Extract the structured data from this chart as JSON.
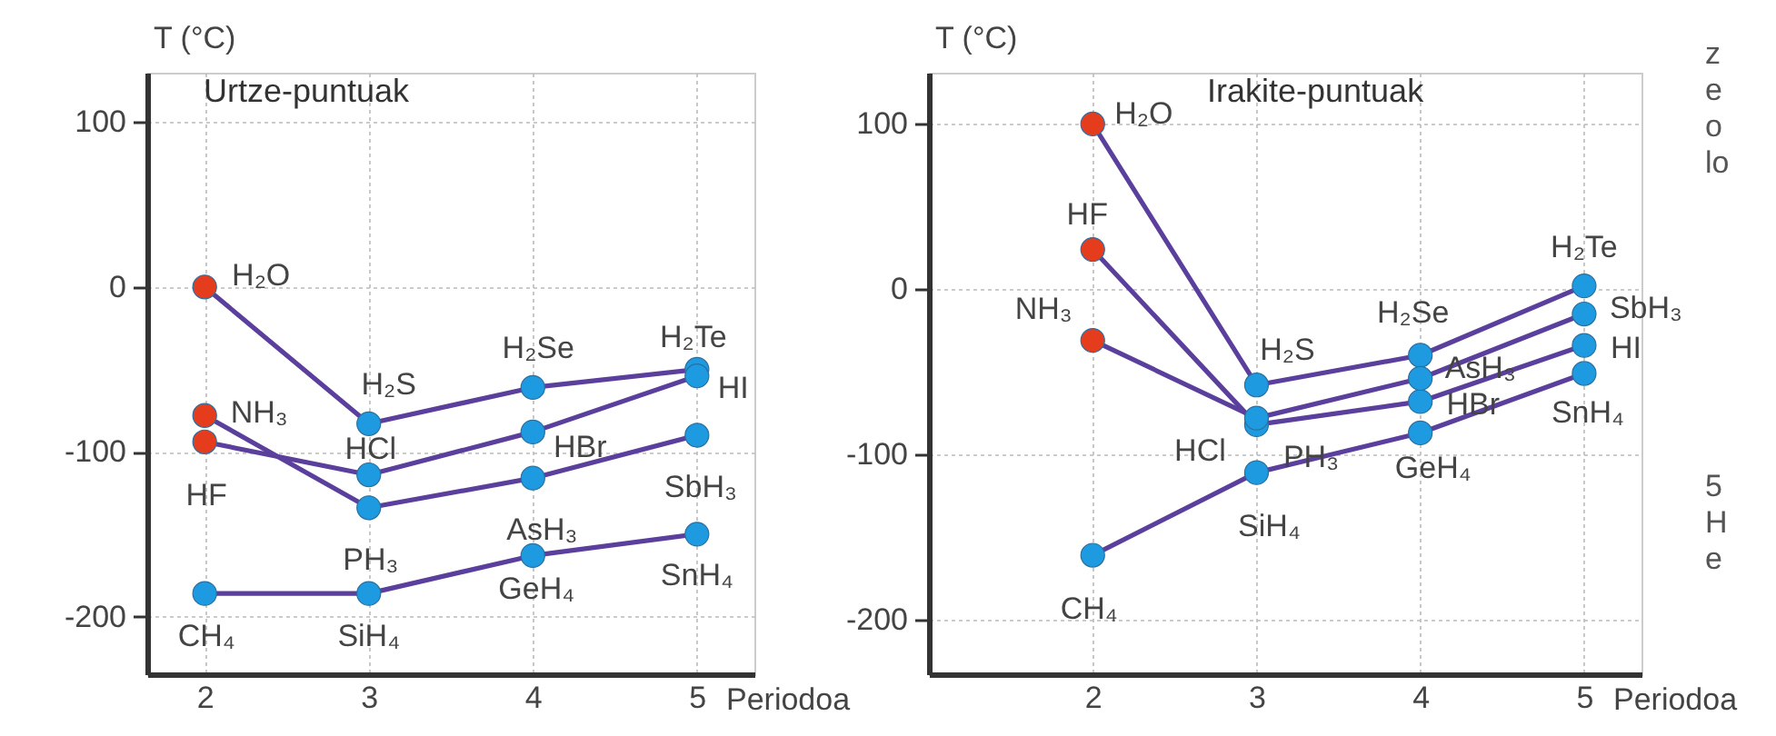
{
  "chart_data": [
    {
      "type": "line",
      "title": "Urtze-puntuak",
      "xlabel": "Periodoa",
      "ylabel": "T (°C)",
      "x": [
        2,
        3,
        4,
        5
      ],
      "xlim": [
        1.65,
        5.35
      ],
      "xticks": [
        2,
        3,
        4,
        5
      ],
      "ylim": [
        -235,
        130
      ],
      "yticks": [
        -200,
        -100,
        0,
        100
      ],
      "grid": true,
      "marker": "circle",
      "series": [
        {
          "color": "#5b3f9c",
          "colors": [
            "#e63c1e",
            "#1e9be0",
            "#1e9be0",
            "#1e9be0"
          ],
          "values": [
            0,
            -83,
            -61,
            -50
          ]
        },
        {
          "color": "#5b3f9c",
          "colors": [
            "#e63c1e",
            "#1e9be0",
            "#1e9be0",
            "#1e9be0"
          ],
          "values": [
            -94,
            -114,
            -88,
            -54
          ]
        },
        {
          "color": "#5b3f9c",
          "colors": [
            "#e63c1e",
            "#1e9be0",
            "#1e9be0",
            "#1e9be0"
          ],
          "values": [
            -78,
            -134,
            -116,
            -90
          ]
        },
        {
          "color": "#5b3f9c",
          "colors": [
            "#1e9be0",
            "#1e9be0",
            "#1e9be0",
            "#1e9be0"
          ],
          "values": [
            -186,
            -186,
            -163,
            -150
          ]
        }
      ],
      "annotations": [
        {
          "text": "H₂O",
          "x": 2,
          "y": 0
        },
        {
          "text": "H₂S",
          "x": 3,
          "y": -83
        },
        {
          "text": "H₂Se",
          "x": 4,
          "y": -61
        },
        {
          "text": "H₂Te",
          "x": 5,
          "y": -50
        },
        {
          "text": "HI",
          "x": 5,
          "y": -54
        },
        {
          "text": "NH₃",
          "x": 2,
          "y": -78
        },
        {
          "text": "HCl",
          "x": 3,
          "y": -114
        },
        {
          "text": "HBr",
          "x": 4,
          "y": -88
        },
        {
          "text": "HF",
          "x": 2,
          "y": -94
        },
        {
          "text": "SbH₃",
          "x": 5,
          "y": -90
        },
        {
          "text": "AsH₃",
          "x": 4,
          "y": -116
        },
        {
          "text": "PH₃",
          "x": 3,
          "y": -134
        },
        {
          "text": "GeH₄",
          "x": 4,
          "y": -163
        },
        {
          "text": "SnH₄",
          "x": 5,
          "y": -150
        },
        {
          "text": "CH₄",
          "x": 2,
          "y": -186
        },
        {
          "text": "SiH₄",
          "x": 3,
          "y": -186
        }
      ]
    },
    {
      "type": "line",
      "title": "Irakite-puntuak",
      "xlabel": "Periodoa",
      "ylabel": "T (°C)",
      "x": [
        2,
        3,
        4,
        5
      ],
      "xlim": [
        1.0,
        5.35
      ],
      "xticks": [
        2,
        3,
        4,
        5
      ],
      "ylim": [
        -233,
        131
      ],
      "yticks": [
        -200,
        -100,
        0,
        100
      ],
      "grid": true,
      "marker": "circle",
      "series": [
        {
          "color": "#5b3f9c",
          "colors": [
            "#e63c1e",
            "#1e9be0",
            "#1e9be0",
            "#1e9be0"
          ],
          "values": [
            100,
            -58,
            -40,
            2
          ]
        },
        {
          "color": "#5b3f9c",
          "colors": [
            "#e63c1e",
            "#1e9be0",
            "#1e9be0",
            "#1e9be0"
          ],
          "values": [
            24,
            -82,
            -68,
            -34
          ]
        },
        {
          "color": "#5b3f9c",
          "colors": [
            "#e63c1e",
            "#1e9be0",
            "#1e9be0",
            "#1e9be0"
          ],
          "values": [
            -31,
            -78,
            -54,
            -15
          ]
        },
        {
          "color": "#5b3f9c",
          "colors": [
            "#1e9be0",
            "#1e9be0",
            "#1e9be0",
            "#1e9be0"
          ],
          "values": [
            -161,
            -111,
            -87,
            -51
          ]
        }
      ],
      "annotations": [
        {
          "text": "H₂O",
          "x": 2,
          "y": 100
        },
        {
          "text": "HF",
          "x": 2,
          "y": 24
        },
        {
          "text": "NH₃",
          "x": 2,
          "y": -31
        },
        {
          "text": "H₂S",
          "x": 3,
          "y": -58
        },
        {
          "text": "H₂Se",
          "x": 4,
          "y": -40
        },
        {
          "text": "H₂Te",
          "x": 5,
          "y": 2
        },
        {
          "text": "SbH₃",
          "x": 5,
          "y": -15
        },
        {
          "text": "HI",
          "x": 5,
          "y": -34
        },
        {
          "text": "AsH₃",
          "x": 4,
          "y": -54
        },
        {
          "text": "HBr",
          "x": 4,
          "y": -68
        },
        {
          "text": "SnH₄",
          "x": 5,
          "y": -51
        },
        {
          "text": "HCl",
          "x": 3,
          "y": -82
        },
        {
          "text": "PH₃",
          "x": 3,
          "y": -78
        },
        {
          "text": "GeH₄",
          "x": 4,
          "y": -87
        },
        {
          "text": "SiH₄",
          "x": 3,
          "y": -111
        },
        {
          "text": "CH₄",
          "x": 2,
          "y": -161
        }
      ]
    },
    {
      "type": "other",
      "annotations": [
        "z",
        "e",
        "o",
        "lo",
        "5",
        "H",
        "e"
      ]
    }
  ]
}
